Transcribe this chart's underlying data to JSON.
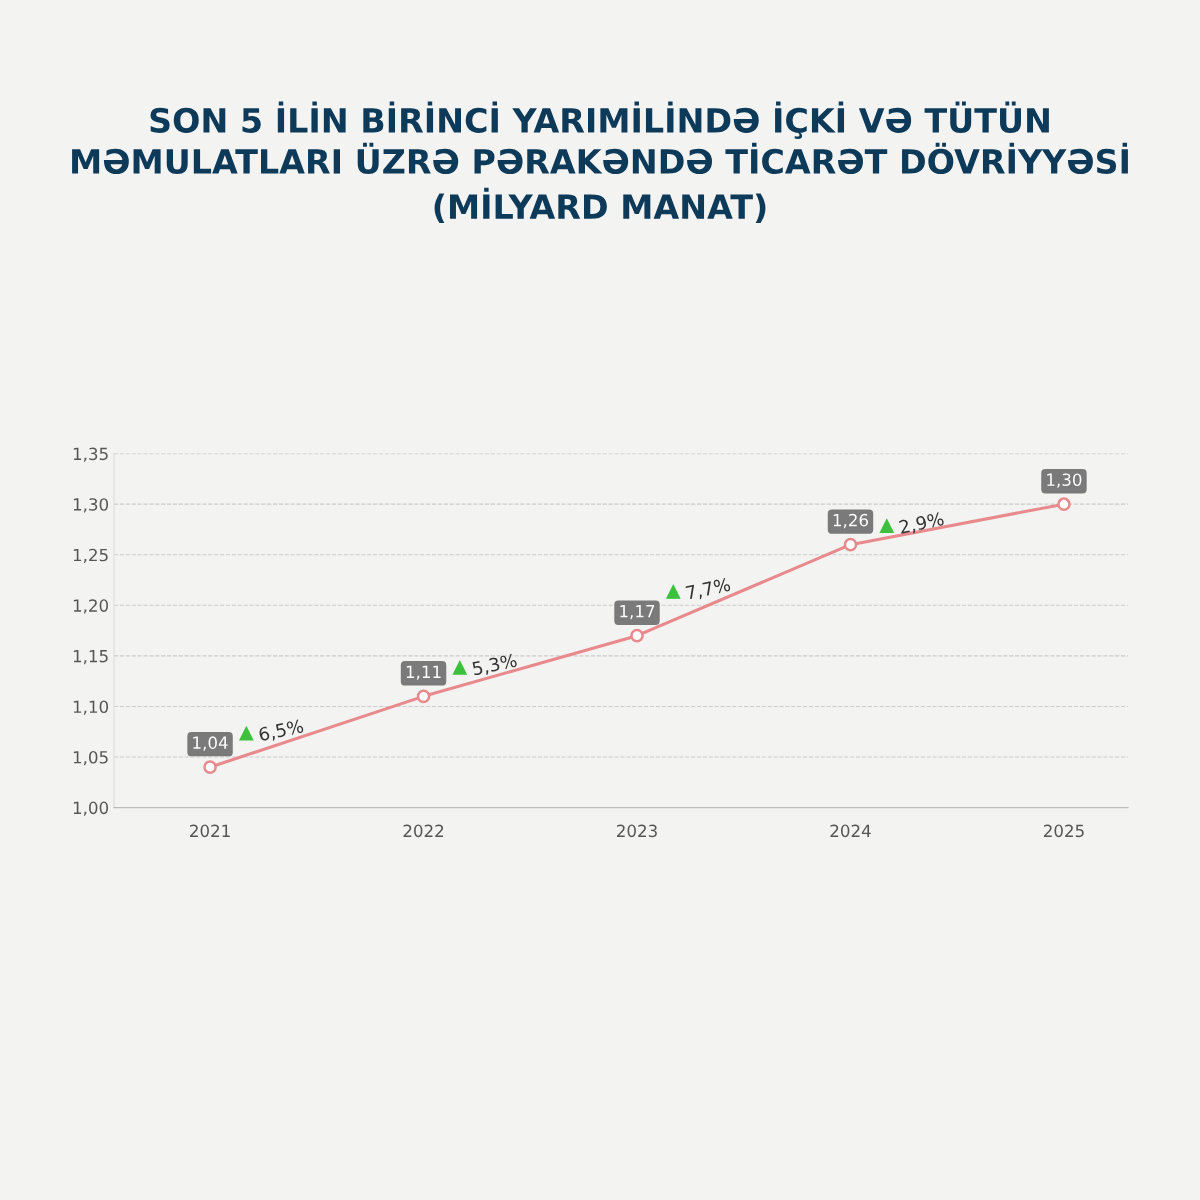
{
  "chart_data": {
    "type": "line",
    "title": "SON 5 İLİN BİRİNCİ YARIMİLİNDƏ İÇKİ VƏ TÜTÜN\nMƏMULATLARI ÜZRƏ PƏRAKƏNDƏ TİCARƏT DÖVRİYYƏSİ\n(MİLYARD MANAT)",
    "categories": [
      "2021",
      "2022",
      "2023",
      "2024",
      "2025"
    ],
    "values": [
      1.04,
      1.11,
      1.17,
      1.26,
      1.3
    ],
    "value_labels": [
      "1,04",
      "1,11",
      "1,17",
      "1,26",
      "1,30"
    ],
    "color": "#e8898c",
    "marker": "circle",
    "line_style": "solid",
    "ylim": [
      1.0,
      1.35
    ],
    "yticks": [
      {
        "value": 1.0,
        "label": "1,00"
      },
      {
        "value": 1.05,
        "label": "1,05"
      },
      {
        "value": 1.1,
        "label": "1,10"
      },
      {
        "value": 1.15,
        "label": "1,15"
      },
      {
        "value": 1.2,
        "label": "1,20"
      },
      {
        "value": 1.25,
        "label": "1,25"
      },
      {
        "value": 1.3,
        "label": "1,30"
      },
      {
        "value": 1.35,
        "label": "1,35"
      }
    ],
    "grid": "y",
    "annotations": [
      "6,5%",
      "5,3%",
      "7,7%",
      "2,9%"
    ]
  }
}
